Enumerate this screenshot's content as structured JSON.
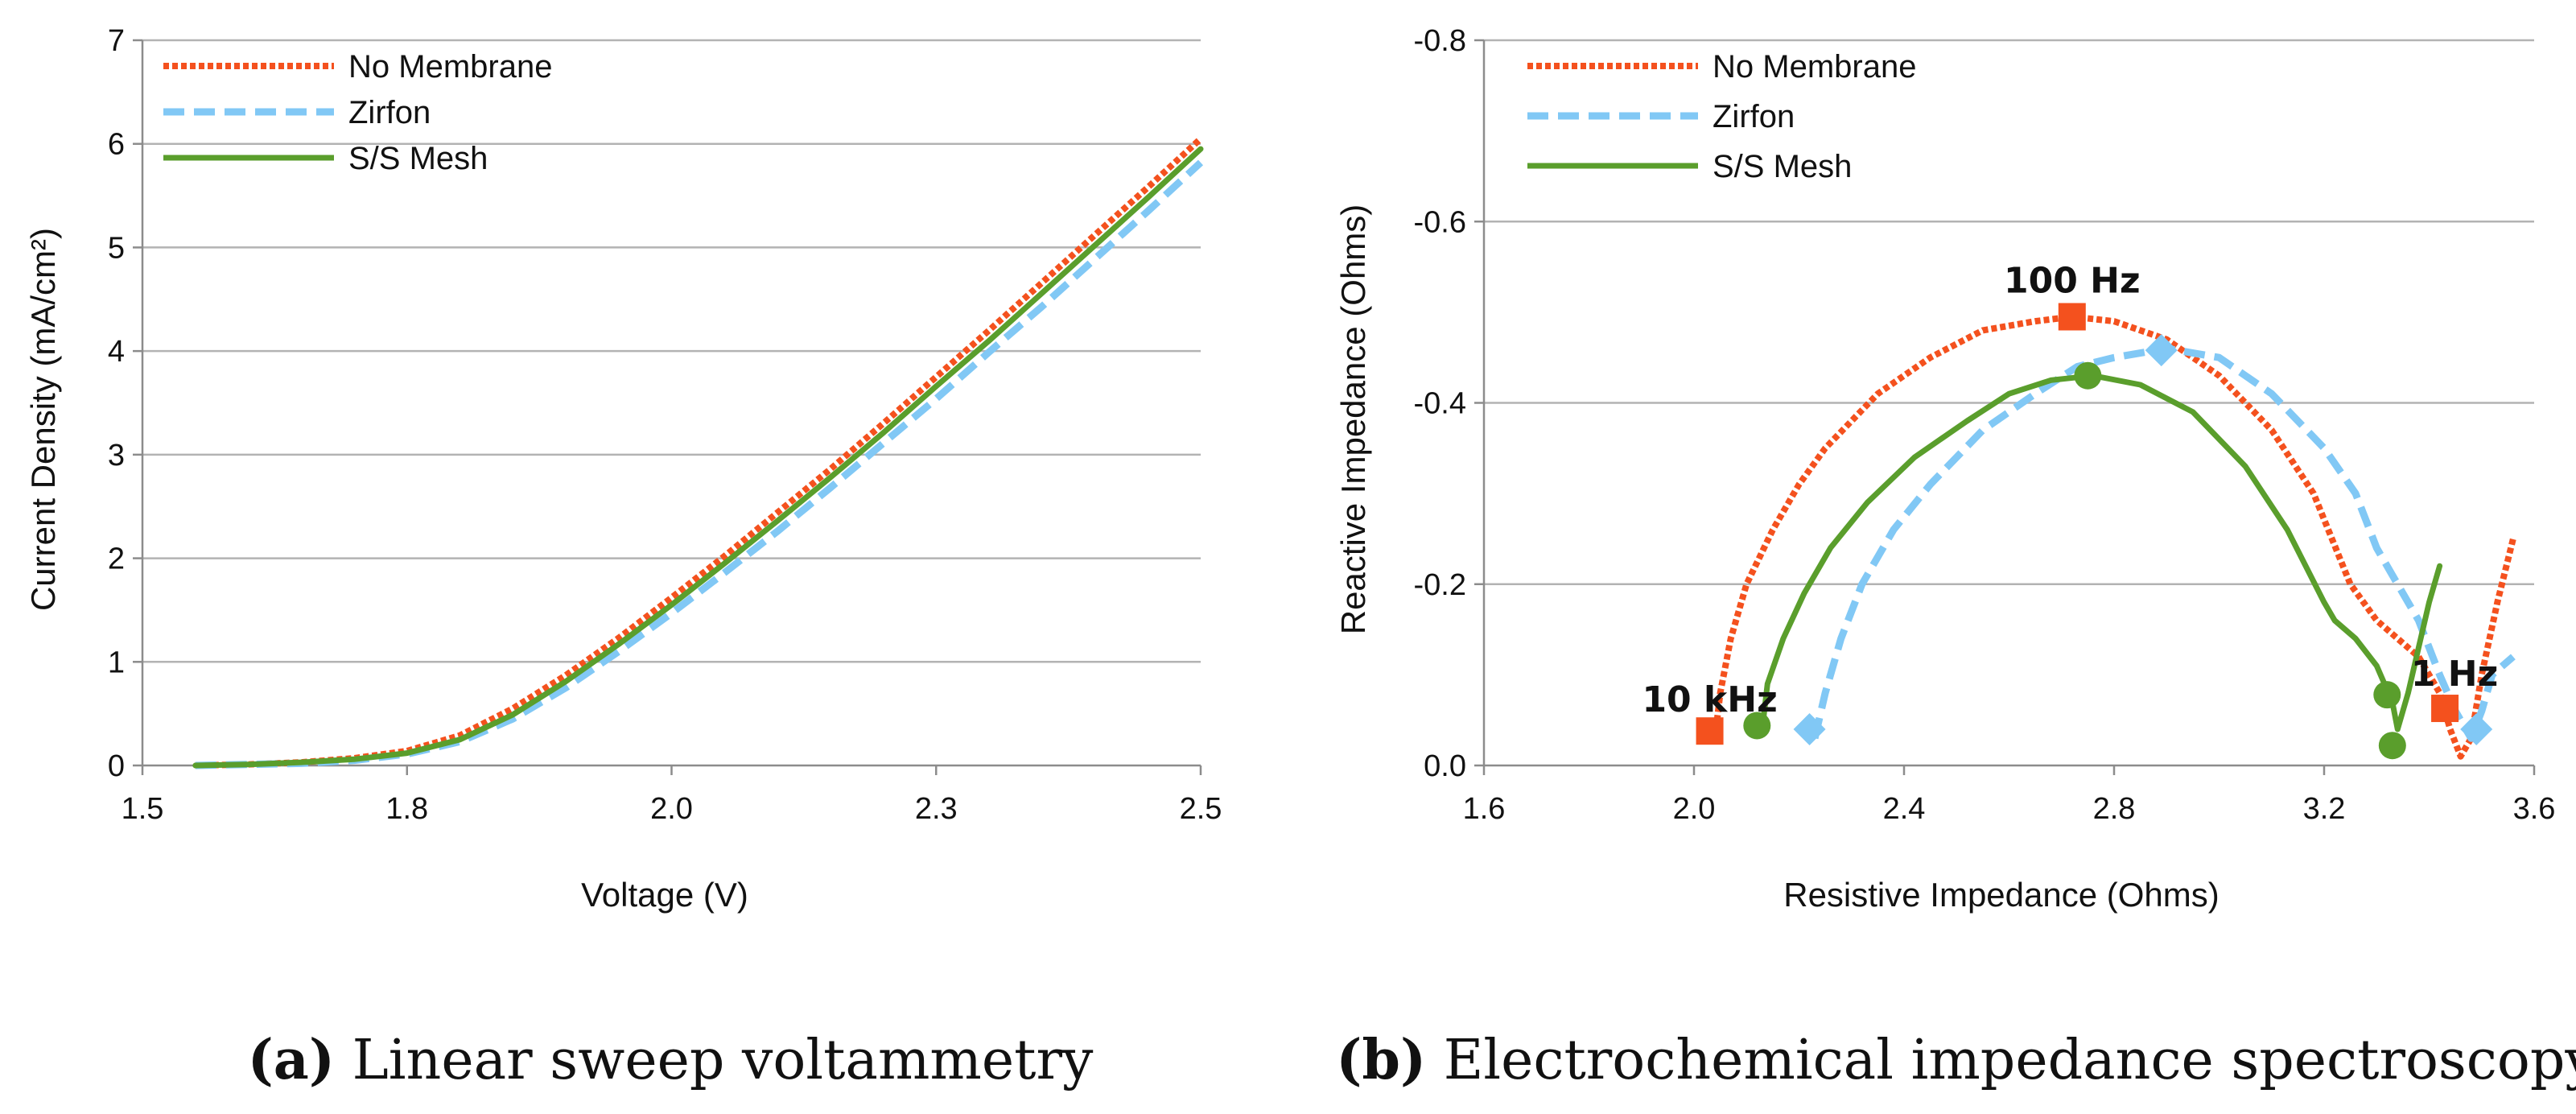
{
  "colors": {
    "no_membrane": "#F4511E",
    "zirfon": "#81C8F5",
    "ss_mesh": "#5A9E2C",
    "grid": "#B3B3B3",
    "axis": "#8C8C8C"
  },
  "chart_data": [
    {
      "type": "line",
      "xlabel": "Voltage (V)",
      "ylabel": "Current Density (mA/cm²)",
      "xlim": [
        1.5,
        2.5
      ],
      "ylim": [
        0,
        7
      ],
      "xticks": [
        1.5,
        1.75,
        2.0,
        2.25,
        2.5
      ],
      "xtick_labels": [
        "1.5",
        "1.8",
        "2.0",
        "2.3",
        "2.5"
      ],
      "yticks": [
        0,
        1,
        2,
        3,
        4,
        5,
        6,
        7
      ],
      "ytick_labels": [
        "0",
        "1",
        "2",
        "3",
        "4",
        "5",
        "6",
        "7"
      ],
      "legend": "top-left",
      "series": [
        {
          "name": "No Membrane",
          "style": "dotted",
          "x": [
            1.55,
            1.6,
            1.65,
            1.7,
            1.75,
            1.8,
            1.85,
            1.9,
            1.95,
            2.0,
            2.05,
            2.1,
            2.15,
            2.2,
            2.25,
            2.3,
            2.35,
            2.4,
            2.45,
            2.5
          ],
          "y": [
            0.0,
            0.01,
            0.03,
            0.07,
            0.14,
            0.29,
            0.55,
            0.87,
            1.23,
            1.62,
            2.02,
            2.44,
            2.86,
            3.3,
            3.75,
            4.2,
            4.66,
            5.12,
            5.58,
            6.05
          ]
        },
        {
          "name": "Zirfon",
          "style": "dashed",
          "x": [
            1.55,
            1.6,
            1.65,
            1.7,
            1.75,
            1.8,
            1.85,
            1.9,
            1.95,
            2.0,
            2.05,
            2.1,
            2.15,
            2.2,
            2.25,
            2.3,
            2.35,
            2.4,
            2.45,
            2.5
          ],
          "y": [
            0.0,
            0.01,
            0.02,
            0.05,
            0.11,
            0.23,
            0.45,
            0.75,
            1.1,
            1.47,
            1.86,
            2.26,
            2.68,
            3.11,
            3.54,
            3.99,
            4.43,
            4.89,
            5.35,
            5.82
          ]
        },
        {
          "name": "S/S Mesh",
          "style": "solid",
          "x": [
            1.55,
            1.6,
            1.65,
            1.7,
            1.75,
            1.8,
            1.85,
            1.9,
            1.95,
            2.0,
            2.05,
            2.1,
            2.15,
            2.2,
            2.25,
            2.3,
            2.35,
            2.4,
            2.45,
            2.5
          ],
          "y": [
            0.0,
            0.01,
            0.03,
            0.06,
            0.12,
            0.25,
            0.49,
            0.81,
            1.17,
            1.55,
            1.95,
            2.36,
            2.78,
            3.21,
            3.66,
            4.1,
            4.56,
            5.02,
            5.48,
            5.95
          ]
        }
      ]
    },
    {
      "type": "line",
      "xlabel": "Resistive Impedance (Ohms)",
      "ylabel": "Reactive Impedance (Ohms)",
      "xlim": [
        1.6,
        3.6
      ],
      "ylim": [
        0,
        -0.8
      ],
      "xticks": [
        1.6,
        2.0,
        2.4,
        2.8,
        3.2,
        3.6
      ],
      "xtick_labels": [
        "1.6",
        "2.0",
        "2.4",
        "2.8",
        "3.2",
        "3.6"
      ],
      "yticks": [
        0,
        -0.2,
        -0.4,
        -0.6,
        -0.8
      ],
      "ytick_labels": [
        "0.0",
        "-0.2",
        "-0.4",
        "-0.6",
        "-0.8"
      ],
      "legend": "top-left",
      "series": [
        {
          "name": "No Membrane",
          "style": "dotted",
          "x": [
            2.04,
            2.05,
            2.07,
            2.1,
            2.15,
            2.2,
            2.25,
            2.35,
            2.45,
            2.55,
            2.65,
            2.72,
            2.8,
            2.9,
            3.0,
            3.1,
            3.18,
            3.25,
            3.3,
            3.38,
            3.42,
            3.44,
            3.46,
            3.48,
            3.5,
            3.53,
            3.56
          ],
          "y": [
            -0.03,
            -0.08,
            -0.14,
            -0.2,
            -0.26,
            -0.31,
            -0.35,
            -0.41,
            -0.45,
            -0.48,
            -0.49,
            -0.495,
            -0.49,
            -0.47,
            -0.43,
            -0.37,
            -0.3,
            -0.2,
            -0.16,
            -0.12,
            -0.08,
            -0.04,
            -0.01,
            -0.03,
            -0.1,
            -0.18,
            -0.25
          ]
        },
        {
          "name": "Zirfon",
          "style": "dashed",
          "x": [
            2.23,
            2.25,
            2.28,
            2.32,
            2.38,
            2.45,
            2.55,
            2.65,
            2.73,
            2.8,
            2.9,
            3.0,
            3.1,
            3.2,
            3.26,
            3.3,
            3.34,
            3.38,
            3.42,
            3.45,
            3.48,
            3.5,
            3.52,
            3.56
          ],
          "y": [
            -0.03,
            -0.08,
            -0.14,
            -0.2,
            -0.26,
            -0.31,
            -0.37,
            -0.41,
            -0.44,
            -0.45,
            -0.46,
            -0.45,
            -0.41,
            -0.35,
            -0.3,
            -0.24,
            -0.2,
            -0.16,
            -0.1,
            -0.06,
            -0.03,
            -0.06,
            -0.1,
            -0.12
          ]
        },
        {
          "name": "S/S Mesh",
          "style": "solid",
          "x": [
            2.13,
            2.14,
            2.17,
            2.21,
            2.26,
            2.33,
            2.42,
            2.52,
            2.6,
            2.68,
            2.76,
            2.85,
            2.95,
            3.05,
            3.13,
            3.2,
            3.22,
            3.26,
            3.3,
            3.33,
            3.34,
            3.36,
            3.38,
            3.4,
            3.42
          ],
          "y": [
            -0.04,
            -0.09,
            -0.14,
            -0.19,
            -0.24,
            -0.29,
            -0.34,
            -0.38,
            -0.41,
            -0.425,
            -0.43,
            -0.42,
            -0.39,
            -0.33,
            -0.26,
            -0.18,
            -0.16,
            -0.14,
            -0.11,
            -0.07,
            -0.04,
            -0.08,
            -0.13,
            -0.18,
            -0.22
          ]
        }
      ],
      "markers": [
        {
          "series": "No Membrane",
          "shape": "square",
          "x": 2.03,
          "y": -0.038
        },
        {
          "series": "No Membrane",
          "shape": "square",
          "x": 2.72,
          "y": -0.495
        },
        {
          "series": "No Membrane",
          "shape": "square",
          "x": 3.43,
          "y": -0.063
        },
        {
          "series": "Zirfon",
          "shape": "diamond",
          "x": 2.22,
          "y": -0.04
        },
        {
          "series": "Zirfon",
          "shape": "diamond",
          "x": 2.89,
          "y": -0.458
        },
        {
          "series": "Zirfon",
          "shape": "diamond",
          "x": 3.49,
          "y": -0.04
        },
        {
          "series": "S/S Mesh",
          "shape": "circle",
          "x": 2.12,
          "y": -0.044
        },
        {
          "series": "S/S Mesh",
          "shape": "circle",
          "x": 2.75,
          "y": -0.43
        },
        {
          "series": "S/S Mesh",
          "shape": "circle",
          "x": 3.33,
          "y": -0.022
        },
        {
          "series": "S/S Mesh",
          "shape": "circle",
          "x": 3.32,
          "y": -0.078
        }
      ],
      "annotations": [
        {
          "text": "10 kHz",
          "x": 2.03,
          "y": -0.038
        },
        {
          "text": "100 Hz",
          "x": 2.72,
          "y": -0.495
        },
        {
          "text": "1 Hz",
          "x": 3.43,
          "y": -0.063
        }
      ]
    }
  ],
  "captions": [
    {
      "letter": "a",
      "text": " Linear sweep voltammetry"
    },
    {
      "letter": "b",
      "text": " Electrochemical impedance spectroscopy"
    }
  ]
}
